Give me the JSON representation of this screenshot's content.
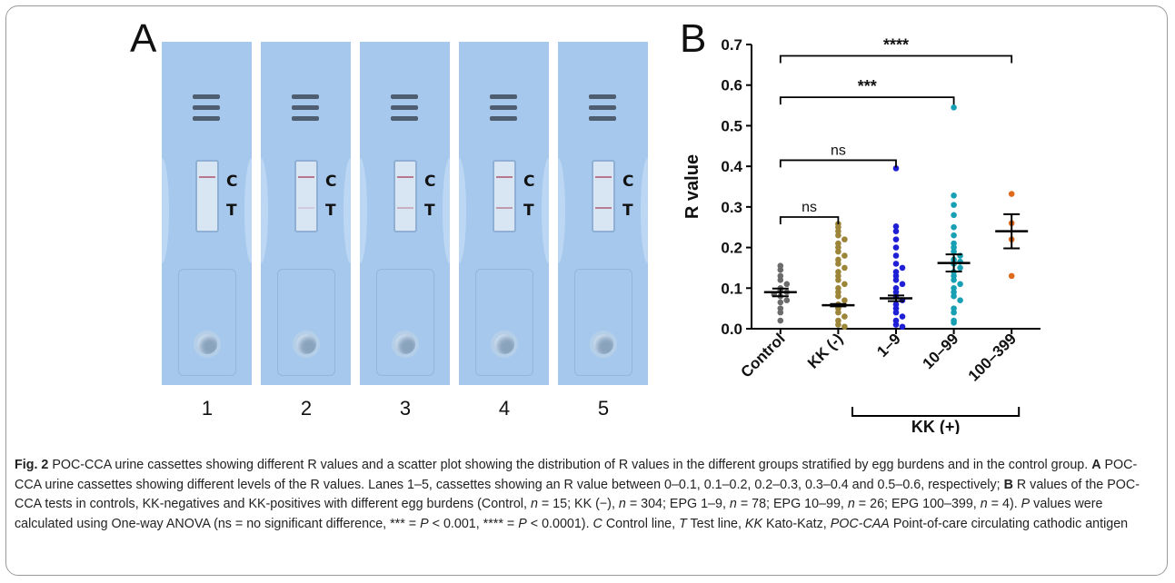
{
  "panels": {
    "a": "A",
    "b": "B"
  },
  "panel_a": {
    "lanes": [
      "1",
      "2",
      "3",
      "4",
      "5"
    ],
    "control_letter": "C",
    "test_letter": "T"
  },
  "chart_data": {
    "type": "scatter",
    "panel_label": "B",
    "ylabel": "R value",
    "xlabel": "",
    "ylim": [
      0,
      0.7
    ],
    "yticks": [
      0.0,
      0.1,
      0.2,
      0.3,
      0.4,
      0.5,
      0.6,
      0.7
    ],
    "ytick_labels": [
      "0.0",
      "0.1",
      "0.2",
      "0.3",
      "0.4",
      "0.5",
      "0.6",
      "0.7"
    ],
    "categories": [
      "Control",
      "KK (-)",
      "1–9",
      "10–99",
      "100–399"
    ],
    "group_bracket_label": "KK (+)",
    "series": [
      {
        "category": "Control",
        "color": "#6b6b6b",
        "mean": 0.09,
        "sem_low": 0.08,
        "sem_high": 0.099,
        "values": [
          0.155,
          0.145,
          0.13,
          0.12,
          0.11,
          0.1,
          0.095,
          0.09,
          0.085,
          0.08,
          0.07,
          0.065,
          0.05,
          0.04,
          0.02
        ]
      },
      {
        "category": "KK (-)",
        "color": "#9c8538",
        "mean": 0.058,
        "sem_low": 0.055,
        "sem_high": 0.061,
        "values": [
          0.258,
          0.25,
          0.24,
          0.23,
          0.22,
          0.21,
          0.2,
          0.19,
          0.18,
          0.17,
          0.16,
          0.15,
          0.14,
          0.13,
          0.12,
          0.11,
          0.1,
          0.09,
          0.08,
          0.07,
          0.06,
          0.05,
          0.04,
          0.03,
          0.02,
          0.01,
          0.005
        ]
      },
      {
        "category": "1–9",
        "color": "#1f1fd6",
        "mean": 0.075,
        "sem_low": 0.068,
        "sem_high": 0.082,
        "values": [
          0.395,
          0.252,
          0.24,
          0.22,
          0.2,
          0.18,
          0.16,
          0.15,
          0.14,
          0.13,
          0.12,
          0.11,
          0.1,
          0.09,
          0.08,
          0.07,
          0.06,
          0.05,
          0.04,
          0.03,
          0.02,
          0.01,
          0.005
        ]
      },
      {
        "category": "10–99",
        "color": "#17a0b4",
        "mean": 0.162,
        "sem_low": 0.141,
        "sem_high": 0.183,
        "values": [
          0.545,
          0.328,
          0.305,
          0.28,
          0.25,
          0.23,
          0.21,
          0.2,
          0.19,
          0.18,
          0.17,
          0.165,
          0.16,
          0.15,
          0.14,
          0.13,
          0.12,
          0.11,
          0.1,
          0.09,
          0.08,
          0.07,
          0.05,
          0.04,
          0.02,
          0.015
        ]
      },
      {
        "category": "100–399",
        "color": "#e06a1c",
        "mean": 0.24,
        "sem_low": 0.198,
        "sem_high": 0.282,
        "values": [
          0.332,
          0.26,
          0.22,
          0.13
        ]
      }
    ],
    "annotations": [
      {
        "from": "Control",
        "to": "KK (-)",
        "y": 0.275,
        "label": "ns"
      },
      {
        "from": "Control",
        "to": "1–9",
        "y": 0.415,
        "label": "ns"
      },
      {
        "from": "Control",
        "to": "10–99",
        "y": 0.57,
        "label": "***"
      },
      {
        "from": "Control",
        "to": "100–399",
        "y": 0.672,
        "label": "****"
      }
    ]
  },
  "caption": {
    "fig_label": "Fig. 2",
    "s1": "  POC-CCA urine cassettes showing different R values and a scatter plot showing the distribution of R values in the different groups stratified by egg burdens and in the control group. ",
    "a_label": "A",
    "s2": " POC-CCA urine cassettes showing different levels of the R values. Lanes 1–5, cassettes showing an R value between 0–0.1, 0.1–0.2, 0.2–0.3, 0.3–0.4 and 0.5–0.6, respectively; ",
    "b_label": "B",
    "s3": " R values of the POC-CCA tests in controls, KK-negatives and KK-positives with different egg burdens (Control, ",
    "n_var": "n",
    "s4": " = 15; KK (−), ",
    "s5": " = 304; EPG 1–9, ",
    "s6": " = 78; EPG 10–99, ",
    "s7": " = 26; EPG 100–399, ",
    "s8": " = 4). ",
    "p_var": "P",
    "s9": " values were calculated using One-way ANOVA (ns = no significant difference, *** = ",
    "s10": " < 0.001, **** = ",
    "s11": " < 0.0001). ",
    "c_abbr": "C",
    "s12": " Control line, ",
    "t_abbr": "T",
    "s13": " Test line,  ",
    "kk_abbr": "KK",
    "s14": " Kato-Katz, ",
    "poc_abbr": "POC-CAA",
    "s15": " Point-of-care circulating cathodic antigen"
  }
}
